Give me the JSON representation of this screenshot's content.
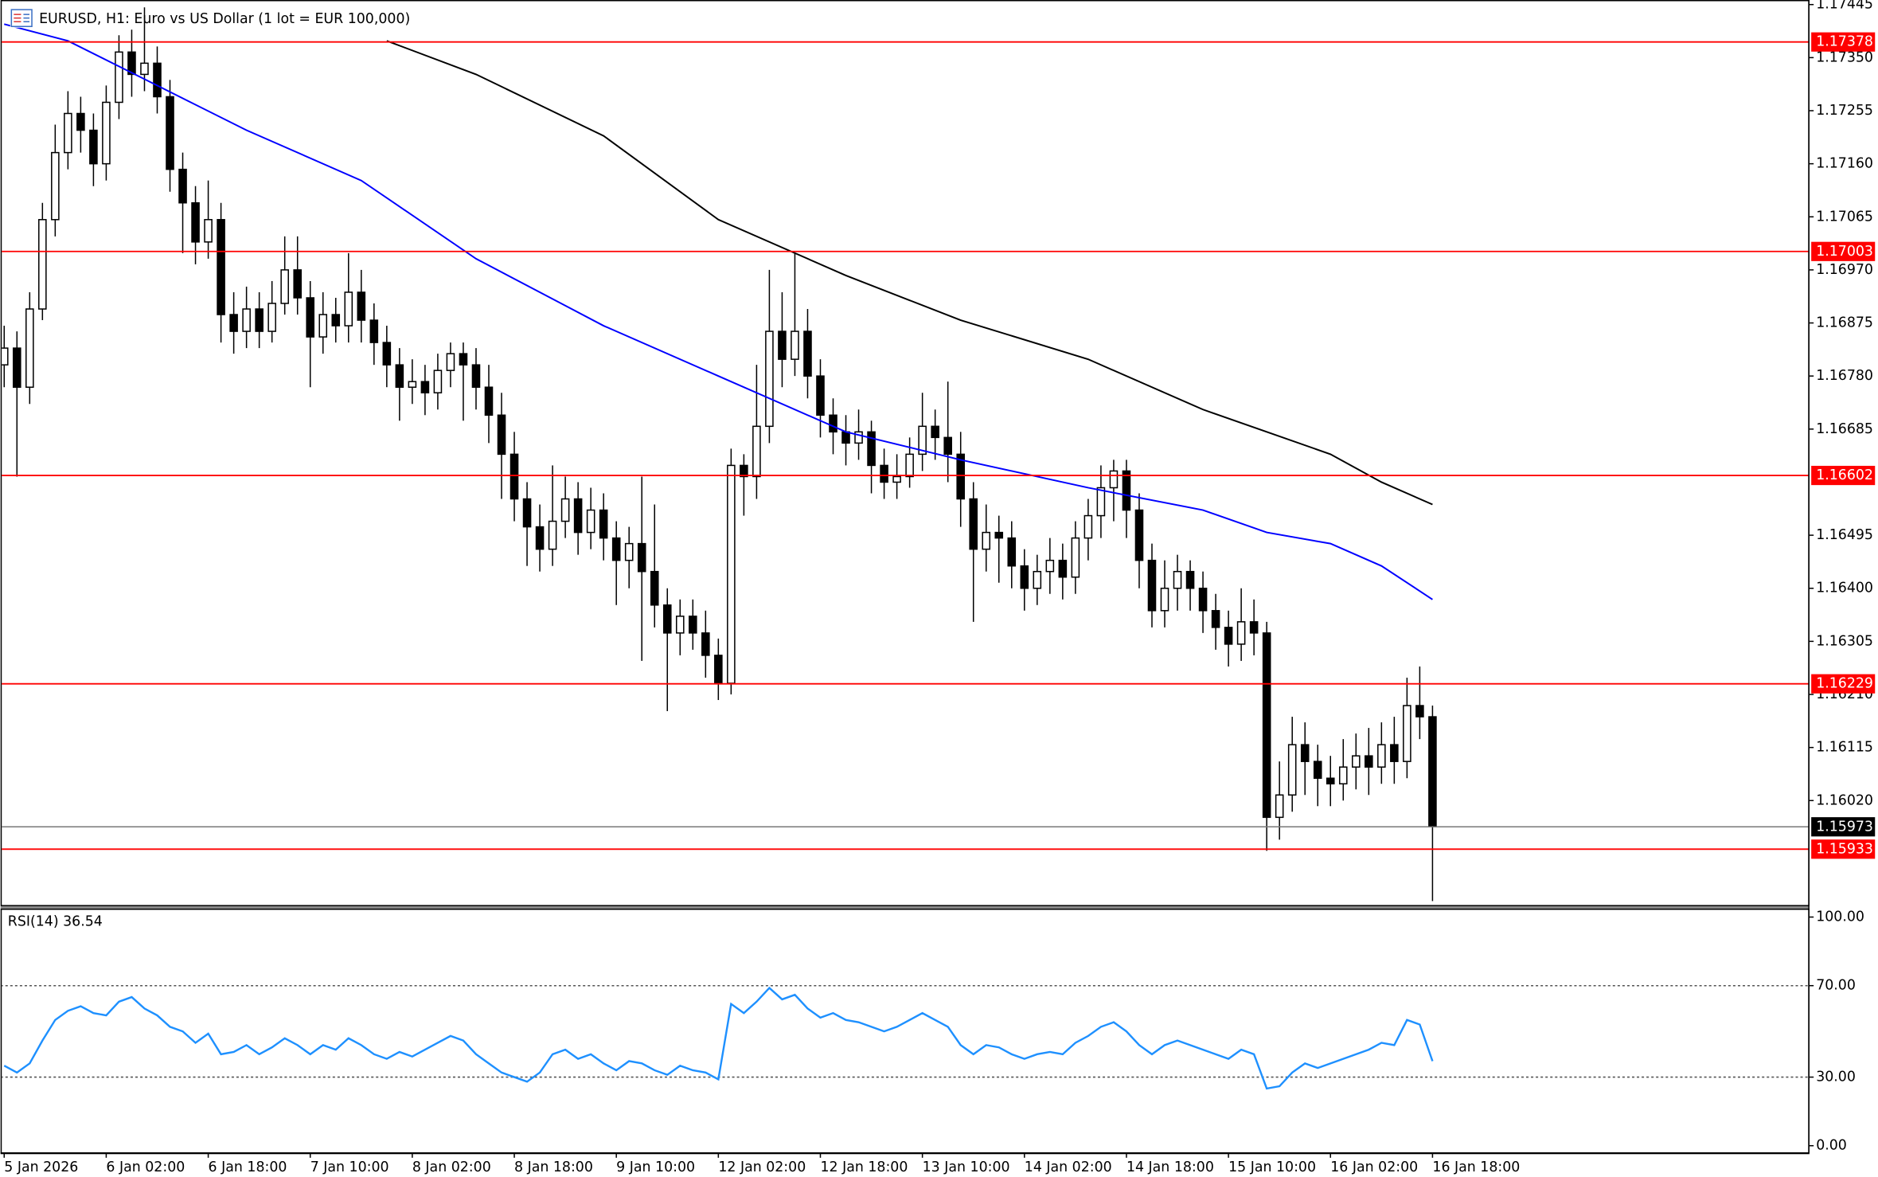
{
  "chart_data": [
    {
      "type": "candlestick",
      "title": "EURUSD, H1:  Euro vs US Dollar (1 lot = EUR 100,000)",
      "time_labels": [
        "5 Jan 2026",
        "6 Jan 02:00",
        "6 Jan 18:00",
        "7 Jan 10:00",
        "8 Jan 02:00",
        "8 Jan 18:00",
        "9 Jan 10:00",
        "12 Jan 02:00",
        "12 Jan 18:00",
        "13 Jan 10:00",
        "14 Jan 02:00",
        "14 Jan 18:00",
        "15 Jan 10:00",
        "16 Jan 02:00",
        "16 Jan 18:00"
      ],
      "open": [
        1.168,
        1.1683,
        1.1676,
        1.169,
        1.1706,
        1.1718,
        1.1725,
        1.1722,
        1.1716,
        1.1727,
        1.1736,
        1.1732,
        1.1734,
        1.1728,
        1.1715,
        1.1709,
        1.1702,
        1.1706,
        1.1689,
        1.1686,
        1.169,
        1.1686,
        1.1691,
        1.1697,
        1.1692,
        1.1685,
        1.1689,
        1.1687,
        1.1693,
        1.1688,
        1.1684,
        1.168,
        1.1676,
        1.1677,
        1.1675,
        1.1679,
        1.1682,
        1.168,
        1.1676,
        1.1671,
        1.1664,
        1.1656,
        1.1651,
        1.1647,
        1.1652,
        1.1656,
        1.165,
        1.1654,
        1.1649,
        1.1645,
        1.1648,
        1.1643,
        1.1637,
        1.1632,
        1.1635,
        1.1632,
        1.1628,
        1.1623,
        1.1662,
        1.166,
        1.1669,
        1.1686,
        1.1681,
        1.1686,
        1.1678,
        1.1671,
        1.1668,
        1.1666,
        1.1668,
        1.1662,
        1.1659,
        1.166,
        1.1664,
        1.1669,
        1.1667,
        1.1664,
        1.1656,
        1.1647,
        1.165,
        1.1649,
        1.1644,
        1.164,
        1.1643,
        1.1645,
        1.1642,
        1.1649,
        1.1653,
        1.1658,
        1.1661,
        1.1654,
        1.1645,
        1.1636,
        1.164,
        1.1643,
        1.164,
        1.1636,
        1.1633,
        1.163,
        1.1634,
        1.1632,
        1.1599,
        1.1603,
        1.1612,
        1.1609,
        1.1606,
        1.1605,
        1.1608,
        1.161,
        1.1608,
        1.1612,
        1.1609,
        1.1619,
        1.1617
      ],
      "high": [
        1.1687,
        1.1686,
        1.1693,
        1.1709,
        1.1723,
        1.1729,
        1.1728,
        1.1725,
        1.173,
        1.1739,
        1.174,
        1.1744,
        1.1737,
        1.1731,
        1.1718,
        1.1712,
        1.1713,
        1.1709,
        1.1693,
        1.1694,
        1.1693,
        1.1695,
        1.1703,
        1.1703,
        1.1695,
        1.1693,
        1.1692,
        1.17,
        1.1697,
        1.1691,
        1.1687,
        1.1683,
        1.1681,
        1.168,
        1.1682,
        1.1684,
        1.1684,
        1.1683,
        1.168,
        1.1675,
        1.1668,
        1.1659,
        1.1655,
        1.1662,
        1.166,
        1.1659,
        1.1658,
        1.1657,
        1.1652,
        1.1651,
        1.166,
        1.1655,
        1.164,
        1.1638,
        1.1638,
        1.1636,
        1.1631,
        1.1665,
        1.1664,
        1.168,
        1.1697,
        1.1693,
        1.17,
        1.169,
        1.1681,
        1.1674,
        1.1671,
        1.1672,
        1.167,
        1.1665,
        1.1664,
        1.1667,
        1.1675,
        1.1672,
        1.1677,
        1.1668,
        1.1659,
        1.1655,
        1.1653,
        1.1652,
        1.1647,
        1.1646,
        1.1649,
        1.1648,
        1.1652,
        1.1656,
        1.1662,
        1.1663,
        1.1663,
        1.1657,
        1.1648,
        1.1645,
        1.1646,
        1.1645,
        1.1643,
        1.1639,
        1.1636,
        1.164,
        1.1638,
        1.1634,
        1.1609,
        1.1617,
        1.1616,
        1.1612,
        1.161,
        1.1613,
        1.1614,
        1.1615,
        1.1616,
        1.1617,
        1.1624,
        1.1626,
        1.1619
      ],
      "low": [
        1.1676,
        1.166,
        1.1673,
        1.1688,
        1.1703,
        1.1715,
        1.1718,
        1.1712,
        1.1713,
        1.1724,
        1.1728,
        1.1729,
        1.1725,
        1.1711,
        1.17,
        1.1698,
        1.1699,
        1.1684,
        1.1682,
        1.1683,
        1.1683,
        1.1684,
        1.1689,
        1.1689,
        1.1676,
        1.1682,
        1.1684,
        1.1684,
        1.1684,
        1.168,
        1.1676,
        1.167,
        1.1673,
        1.1671,
        1.1672,
        1.1676,
        1.167,
        1.1672,
        1.1666,
        1.1656,
        1.1652,
        1.1644,
        1.1643,
        1.1644,
        1.1649,
        1.1646,
        1.1647,
        1.1645,
        1.1637,
        1.164,
        1.1627,
        1.1633,
        1.1618,
        1.1628,
        1.1629,
        1.1624,
        1.162,
        1.1621,
        1.1653,
        1.1656,
        1.1666,
        1.1676,
        1.1678,
        1.1674,
        1.1667,
        1.1664,
        1.1662,
        1.1663,
        1.1657,
        1.1656,
        1.1656,
        1.1658,
        1.1661,
        1.1663,
        1.1659,
        1.1651,
        1.1634,
        1.1643,
        1.1641,
        1.164,
        1.1636,
        1.1637,
        1.1639,
        1.1638,
        1.1639,
        1.1645,
        1.1649,
        1.1652,
        1.1649,
        1.164,
        1.1633,
        1.1633,
        1.1636,
        1.1636,
        1.1632,
        1.1629,
        1.1626,
        1.1627,
        1.1628,
        1.1593,
        1.1595,
        1.16,
        1.1603,
        1.1601,
        1.1601,
        1.1602,
        1.1604,
        1.1603,
        1.1605,
        1.1605,
        1.1606,
        1.1613,
        1.1584
      ],
      "close": [
        1.1683,
        1.1676,
        1.169,
        1.1706,
        1.1718,
        1.1725,
        1.1722,
        1.1716,
        1.1727,
        1.1736,
        1.1732,
        1.1734,
        1.1728,
        1.1715,
        1.1709,
        1.1702,
        1.1706,
        1.1689,
        1.1686,
        1.169,
        1.1686,
        1.1691,
        1.1697,
        1.1692,
        1.1685,
        1.1689,
        1.1687,
        1.1693,
        1.1688,
        1.1684,
        1.168,
        1.1676,
        1.1677,
        1.1675,
        1.1679,
        1.1682,
        1.168,
        1.1676,
        1.1671,
        1.1664,
        1.1656,
        1.1651,
        1.1647,
        1.1652,
        1.1656,
        1.165,
        1.1654,
        1.1649,
        1.1645,
        1.1648,
        1.1643,
        1.1637,
        1.1632,
        1.1635,
        1.1632,
        1.1628,
        1.1623,
        1.1662,
        1.166,
        1.1669,
        1.1686,
        1.1681,
        1.1686,
        1.1678,
        1.1671,
        1.1668,
        1.1666,
        1.1668,
        1.1662,
        1.1659,
        1.166,
        1.1664,
        1.1669,
        1.1667,
        1.1664,
        1.1656,
        1.1647,
        1.165,
        1.1649,
        1.1644,
        1.164,
        1.1643,
        1.1645,
        1.1642,
        1.1649,
        1.1653,
        1.1658,
        1.1661,
        1.1654,
        1.1645,
        1.1636,
        1.164,
        1.1643,
        1.164,
        1.1636,
        1.1633,
        1.163,
        1.1634,
        1.1632,
        1.1599,
        1.1603,
        1.1612,
        1.1609,
        1.1606,
        1.1605,
        1.1608,
        1.161,
        1.1608,
        1.1612,
        1.1609,
        1.1619,
        1.1617,
        1.15973
      ],
      "up_color": "#ffffff",
      "down_color": "#000000",
      "moving_averages": [
        {
          "color": "#0000ff",
          "x": [
            0,
            5,
            12,
            19,
            28,
            37,
            47,
            56,
            66,
            75,
            85,
            94,
            99,
            104,
            108,
            112
          ],
          "values": [
            1.1741,
            1.1738,
            1.173,
            1.1722,
            1.1713,
            1.1699,
            1.1687,
            1.1678,
            1.1668,
            1.1663,
            1.1658,
            1.1654,
            1.165,
            1.1648,
            1.1644,
            1.1638
          ]
        },
        {
          "color": "#000000",
          "x": [
            30,
            37,
            47,
            56,
            66,
            75,
            85,
            94,
            99,
            104,
            108,
            112
          ],
          "values": [
            1.1738,
            1.1732,
            1.1721,
            1.1706,
            1.1696,
            1.1688,
            1.1681,
            1.1672,
            1.1668,
            1.1664,
            1.1659,
            1.1655
          ]
        }
      ],
      "levels": [
        1.17378,
        1.17003,
        1.16602,
        1.16229,
        1.15933
      ],
      "level_color": "#ff0000",
      "current_price": 1.15973,
      "ylim": [
        1.15833,
        1.17451
      ],
      "yticks": [
        1.17445,
        {
          "value": 1.1735,
          "label": "1.17350"
        },
        1.17255,
        {
          "value": 1.1716,
          "label": "1.17160"
        },
        1.17065,
        {
          "value": 1.1697,
          "label": "1.16970"
        },
        1.16875,
        {
          "value": 1.1678,
          "label": "1.16780"
        },
        1.16685,
        1.16495,
        {
          "value": 1.164,
          "label": "1.16400"
        },
        1.16305,
        {
          "value": 1.1621,
          "label": "1.16210"
        },
        1.16115,
        {
          "value": 1.1602,
          "label": "1.16020"
        }
      ]
    },
    {
      "type": "line",
      "title": "RSI(14) 36.54",
      "color": "#1e90ff",
      "values": [
        35,
        32,
        36,
        46,
        55,
        59,
        61,
        58,
        57,
        63,
        65,
        60,
        57,
        52,
        50,
        45,
        49,
        40,
        41,
        44,
        40,
        43,
        47,
        44,
        40,
        44,
        42,
        47,
        44,
        40,
        38,
        41,
        39,
        42,
        45,
        48,
        46,
        40,
        36,
        32,
        30,
        28,
        32,
        40,
        42,
        38,
        40,
        36,
        33,
        37,
        36,
        33,
        31,
        35,
        33,
        32,
        29,
        62,
        58,
        63,
        69,
        64,
        66,
        60,
        56,
        58,
        55,
        54,
        52,
        50,
        52,
        55,
        58,
        55,
        52,
        44,
        40,
        44,
        43,
        40,
        38,
        40,
        41,
        40,
        45,
        48,
        52,
        54,
        50,
        44,
        40,
        44,
        46,
        44,
        42,
        40,
        38,
        42,
        40,
        25,
        26,
        32,
        36,
        34,
        36,
        38,
        40,
        42,
        45,
        44,
        55,
        53,
        37
      ],
      "levels": [
        70,
        30
      ],
      "ylim": [
        0,
        100
      ],
      "yticks": [
        {
          "value": 100,
          "label": "100.00"
        },
        {
          "value": 70,
          "label": "70.00"
        },
        {
          "value": 30,
          "label": "30.00"
        },
        {
          "value": 0,
          "label": "0.00"
        }
      ]
    }
  ]
}
